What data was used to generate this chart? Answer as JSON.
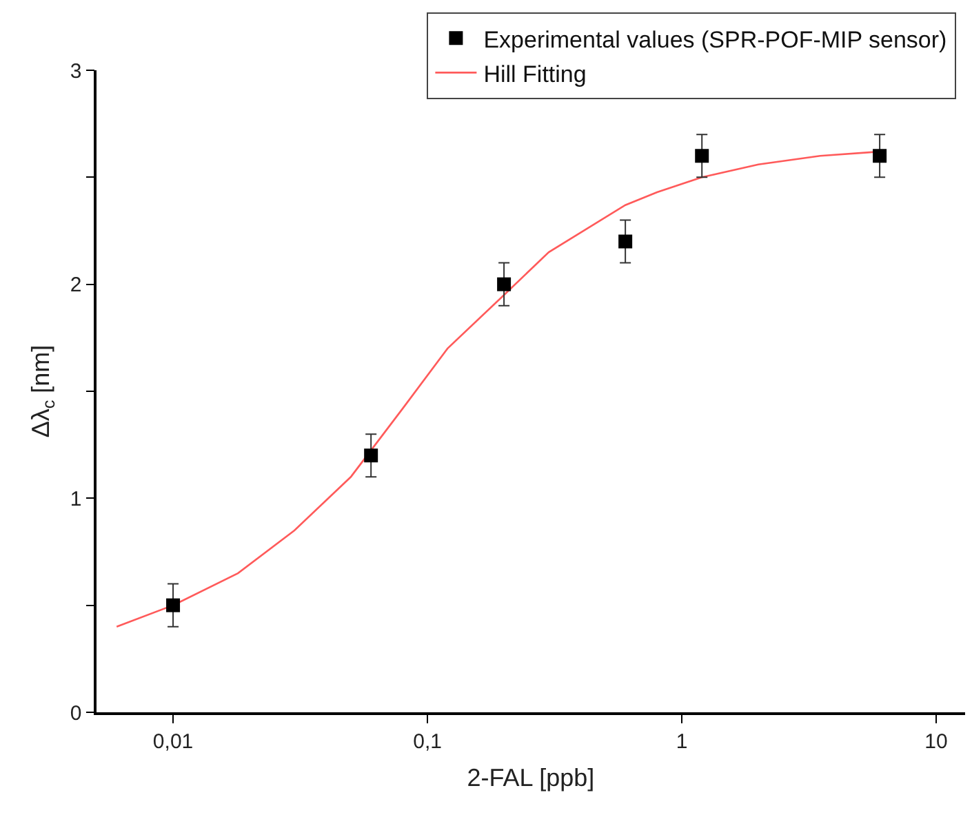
{
  "chart_data": {
    "type": "scatter",
    "xlabel": "2-FAL [ppb]",
    "ylabel": "Δλ$_{c}$ [nm]",
    "log": "x",
    "xlim": [
      0.005,
      13
    ],
    "xticks": [
      {
        "value": 0.01,
        "label": "0,01"
      },
      {
        "value": 0.1,
        "label": "0,1"
      },
      {
        "value": 1,
        "label": "1"
      },
      {
        "value": 10,
        "label": "10"
      }
    ],
    "ylim": [
      0,
      3
    ],
    "yticks": [
      0,
      {
        "value": 0.5,
        "label": null
      },
      1,
      {
        "value": 1.5,
        "label": null
      },
      2,
      {
        "value": 2.5,
        "label": null
      },
      3
    ],
    "grid": false,
    "legend": "top right",
    "series": [
      {
        "name": "Experimental values (SPR-POF-MIP sensor)",
        "marker": "square",
        "color": "#000000",
        "x": [
          0.01,
          0.06,
          0.2,
          0.6,
          1.2,
          6
        ],
        "values": [
          0.5,
          1.2,
          2.0,
          2.2,
          2.6,
          2.6
        ],
        "errors": [
          0.1,
          0.1,
          0.1,
          0.1,
          0.1,
          0.1
        ]
      },
      {
        "name": "Hill Fitting",
        "type": "line",
        "marker": "none",
        "line_style": "solid",
        "color": "#ff5a5a",
        "x": [
          0.006,
          0.01,
          0.018,
          0.03,
          0.05,
          0.08,
          0.12,
          0.2,
          0.3,
          0.6,
          0.8,
          1.2,
          2,
          3.5,
          6
        ],
        "values": [
          0.4,
          0.5,
          0.65,
          0.85,
          1.1,
          1.42,
          1.7,
          1.95,
          2.15,
          2.37,
          2.43,
          2.5,
          2.56,
          2.6,
          2.62
        ]
      }
    ]
  }
}
